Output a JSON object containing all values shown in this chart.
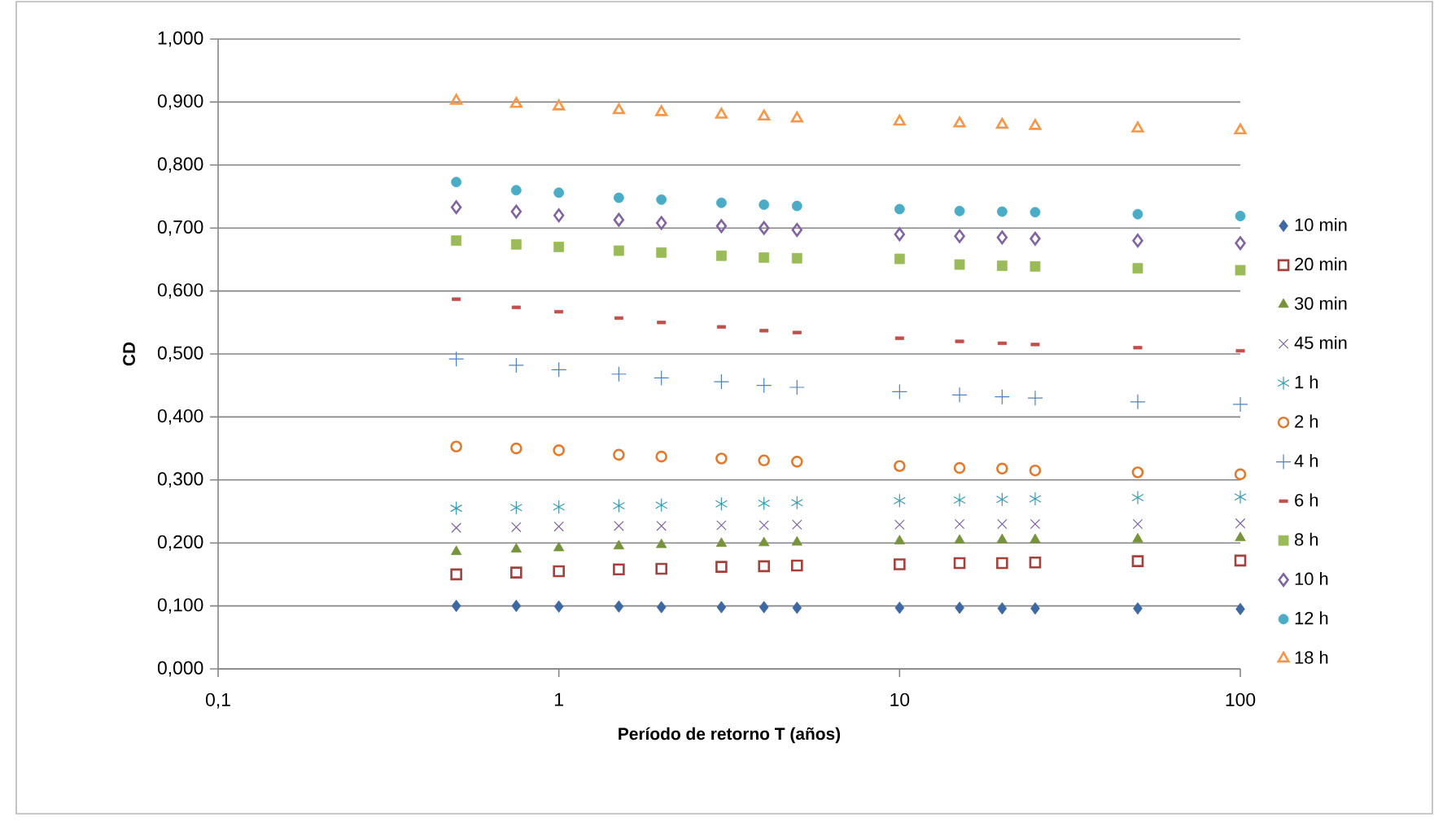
{
  "chart_data": {
    "type": "scatter",
    "xlabel": "Período de retorno T (años)",
    "ylabel": "CD",
    "log": "x",
    "grid": "y",
    "legend": "right",
    "xlim": [
      0.1,
      100
    ],
    "xticks": [
      {
        "value": 0.1,
        "label": "0,1"
      },
      1,
      10,
      100
    ],
    "ylim": [
      0,
      1
    ],
    "yticks": [
      {
        "value": 0,
        "label": "0,000"
      },
      {
        "value": 0.1,
        "label": "0,100"
      },
      {
        "value": 0.2,
        "label": "0,200"
      },
      {
        "value": 0.3,
        "label": "0,300"
      },
      {
        "value": 0.4,
        "label": "0,400"
      },
      {
        "value": 0.5,
        "label": "0,500"
      },
      {
        "value": 0.6,
        "label": "0,600"
      },
      {
        "value": 0.7,
        "label": "0,700"
      },
      {
        "value": 0.8,
        "label": "0,800"
      },
      {
        "value": 0.9,
        "label": "0,900"
      },
      {
        "value": 1,
        "label": "1,000"
      }
    ],
    "x": [
      0.5,
      0.75,
      1,
      1.5,
      2,
      3,
      4,
      5,
      10,
      15,
      20,
      25,
      50,
      100
    ],
    "series": [
      {
        "name": "10 min",
        "color": "#3e68a2",
        "marker": "diamond",
        "values": [
          0.1,
          0.1,
          0.099,
          0.099,
          0.098,
          0.098,
          0.098,
          0.097,
          0.097,
          0.097,
          0.096,
          0.096,
          0.096,
          0.095
        ]
      },
      {
        "name": "20 min",
        "color": "#a5403d",
        "marker": "square_open",
        "values": [
          0.15,
          0.153,
          0.155,
          0.158,
          0.159,
          0.162,
          0.163,
          0.164,
          0.166,
          0.168,
          0.168,
          0.169,
          0.171,
          0.172
        ]
      },
      {
        "name": "30 min",
        "color": "#77933c",
        "marker": "triangle",
        "values": [
          0.186,
          0.19,
          0.192,
          0.195,
          0.197,
          0.199,
          0.2,
          0.201,
          0.203,
          0.204,
          0.205,
          0.205,
          0.206,
          0.208
        ]
      },
      {
        "name": "45 min",
        "color": "#7d60a0",
        "marker": "cross",
        "values": [
          0.224,
          0.225,
          0.226,
          0.227,
          0.227,
          0.228,
          0.228,
          0.229,
          0.229,
          0.23,
          0.23,
          0.23,
          0.23,
          0.231
        ]
      },
      {
        "name": "1 h",
        "color": "#3a9bb0",
        "marker": "cross",
        "values": [
          0.255,
          0.256,
          0.257,
          0.259,
          0.26,
          0.262,
          0.263,
          0.264,
          0.267,
          0.268,
          0.269,
          0.27,
          0.272,
          0.273
        ]
      },
      {
        "name": "2 h",
        "color": "#e07b2e",
        "marker": "circle_open",
        "values": [
          0.353,
          0.35,
          0.347,
          0.34,
          0.337,
          0.334,
          0.331,
          0.329,
          0.322,
          0.319,
          0.318,
          0.315,
          0.312,
          0.309
        ]
      },
      {
        "name": "4 h",
        "color": "#4f81bd",
        "marker": "plus",
        "values": [
          0.492,
          0.482,
          0.475,
          0.468,
          0.462,
          0.456,
          0.45,
          0.447,
          0.44,
          0.435,
          0.432,
          0.43,
          0.424,
          0.42
        ]
      },
      {
        "name": "6 h",
        "color": "#c0504d",
        "marker": "square",
        "values": [
          0.587,
          0.574,
          0.567,
          0.557,
          0.55,
          0.543,
          0.537,
          0.534,
          0.525,
          0.52,
          0.517,
          0.515,
          0.51,
          0.505
        ]
      },
      {
        "name": "8 h",
        "color": "#9bbb59",
        "marker": "square",
        "values": [
          0.68,
          0.674,
          0.67,
          0.664,
          0.661,
          0.656,
          0.653,
          0.652,
          0.651,
          0.642,
          0.64,
          0.639,
          0.636,
          0.633
        ]
      },
      {
        "name": "10 h",
        "color": "#8064a2",
        "marker": "diamond_open",
        "values": [
          0.733,
          0.726,
          0.72,
          0.713,
          0.708,
          0.703,
          0.7,
          0.697,
          0.69,
          0.687,
          0.685,
          0.683,
          0.68,
          0.676
        ]
      },
      {
        "name": "12 h",
        "color": "#4bacc6",
        "marker": "circle",
        "values": [
          0.773,
          0.76,
          0.756,
          0.748,
          0.745,
          0.74,
          0.737,
          0.735,
          0.73,
          0.727,
          0.726,
          0.725,
          0.722,
          0.719
        ]
      },
      {
        "name": "18 h",
        "color": "#f79646",
        "marker": "triangle_open",
        "values": [
          0.902,
          0.897,
          0.893,
          0.887,
          0.884,
          0.88,
          0.877,
          0.874,
          0.869,
          0.866,
          0.864,
          0.862,
          0.858,
          0.855
        ]
      }
    ]
  }
}
